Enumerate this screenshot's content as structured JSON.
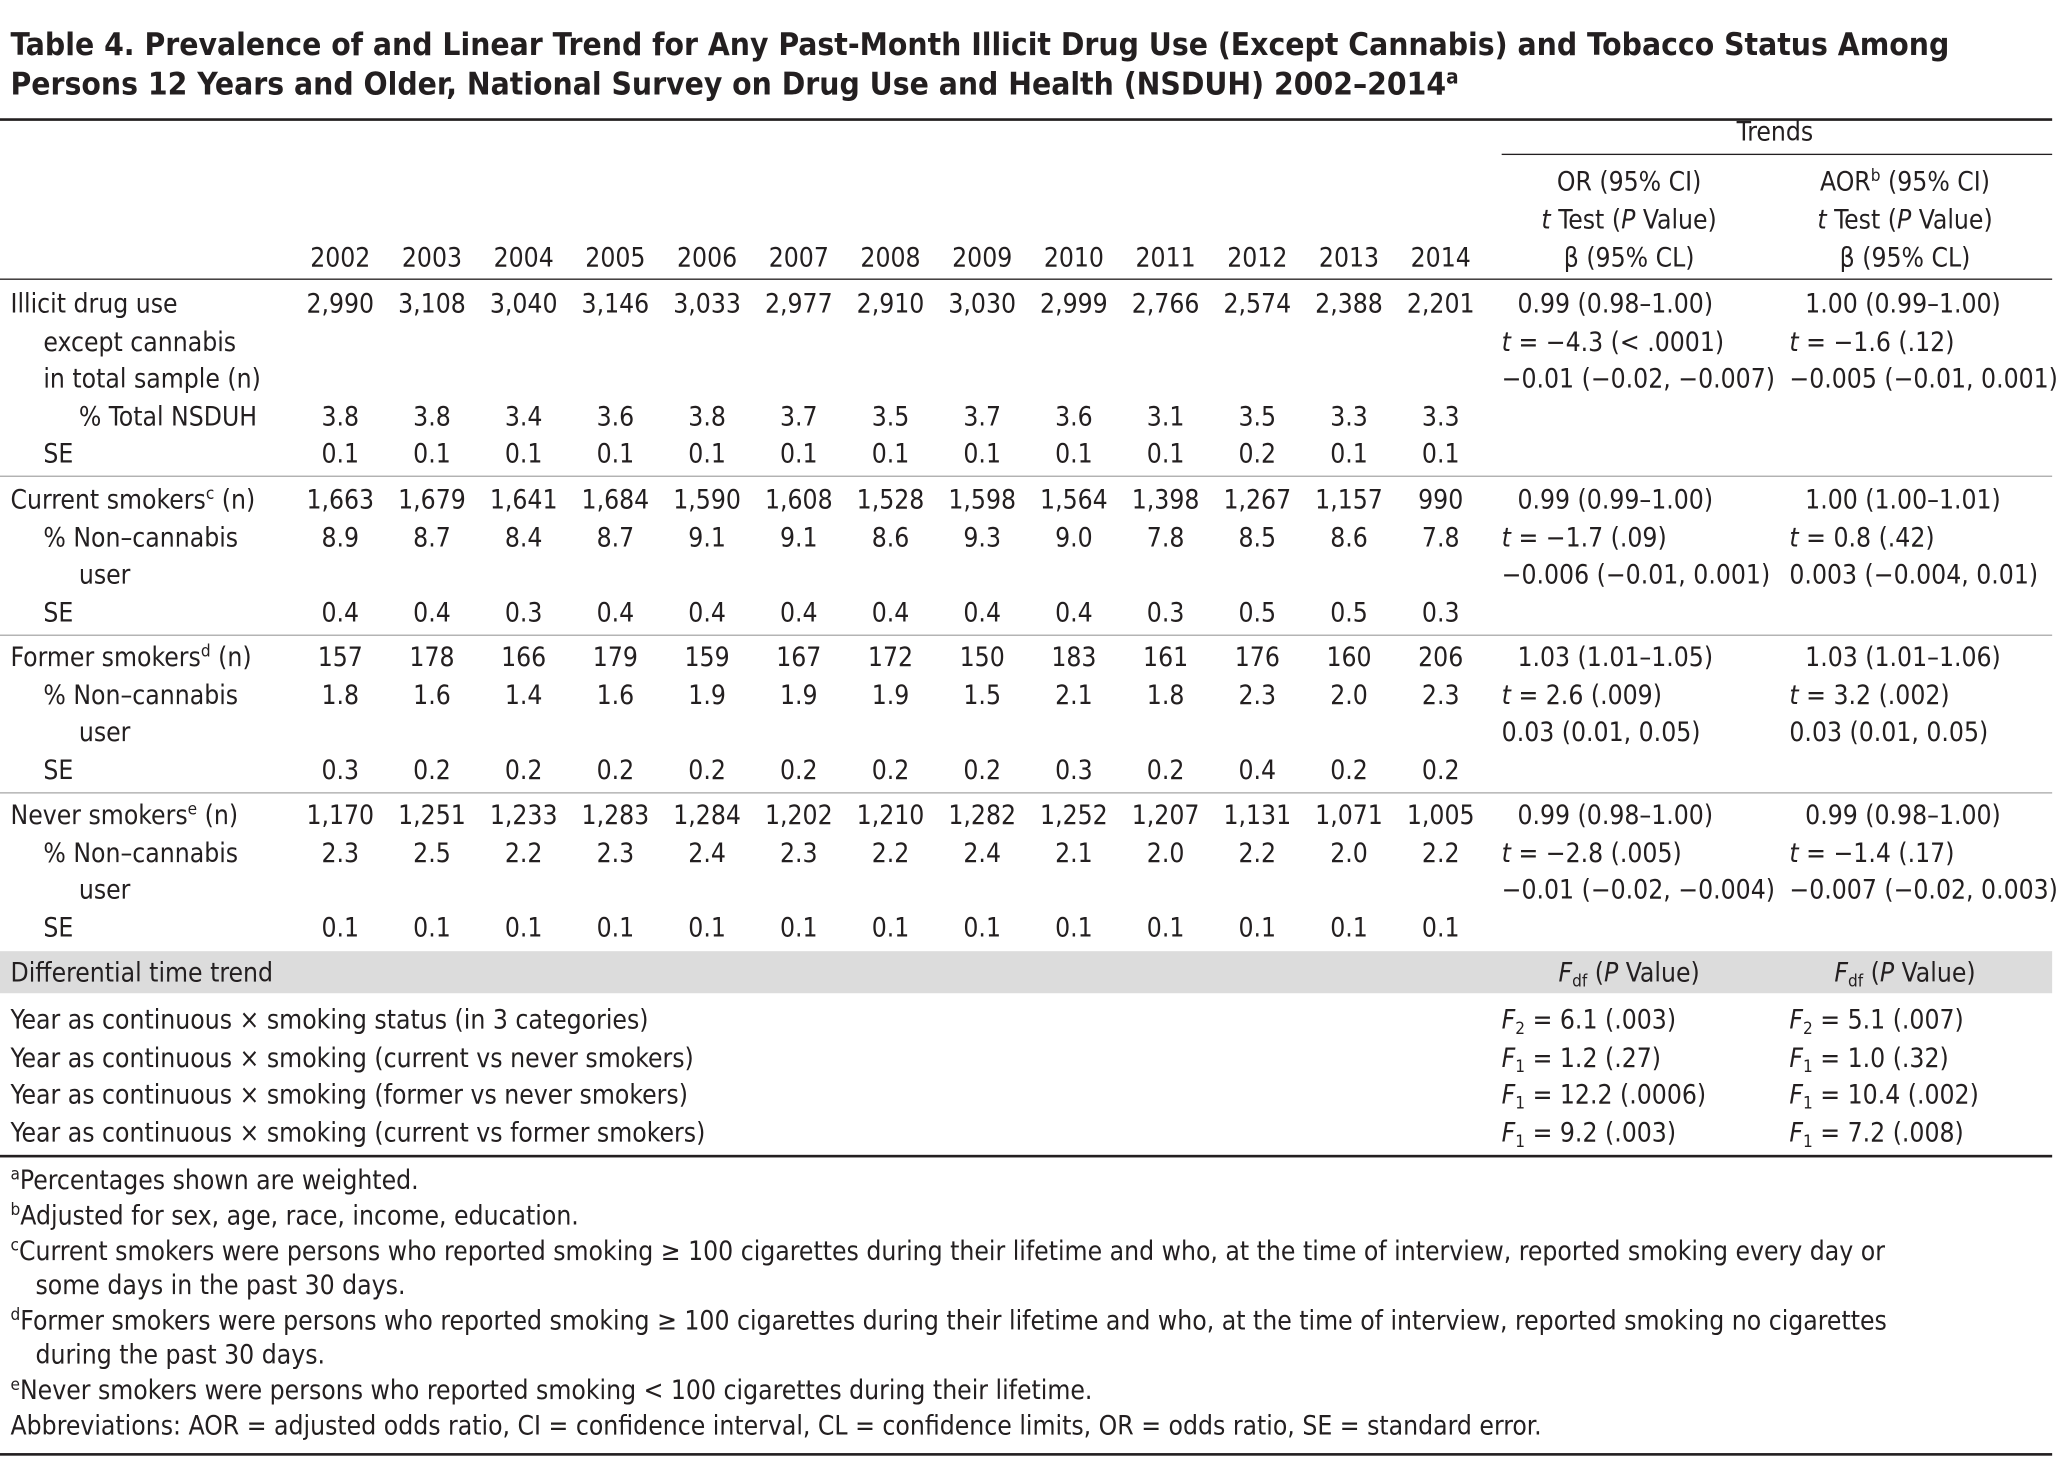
{
  "title": [
    {
      "t": "Table 4. Prevalence of and Linear Trend for Any Past-Month Illicit Drug Use (Except Cannabis) and Tobacco Status Among"
    }
  ],
  "title2": [
    {
      "t": "Persons 12 Years and Older,  National Survey on Drug Use and Health (NSDUH) 2002–2014"
    },
    {
      "t": "a",
      "f": "sup"
    }
  ],
  "header": {
    "years": [
      "2002",
      "2003",
      "2004",
      "2005",
      "2006",
      "2007",
      "2008",
      "2009",
      "2010",
      "2011",
      "2012",
      "2013",
      "2014"
    ],
    "trends": "Trends",
    "or": [
      [
        {
          "t": "OR (95% CI)"
        }
      ],
      [
        {
          "t": "t",
          "f": "i"
        },
        {
          "t": " Test ("
        },
        {
          "t": "P",
          "f": "i"
        },
        {
          "t": " Value)"
        }
      ],
      [
        {
          "t": "β (95% CL)"
        }
      ]
    ],
    "aor": [
      [
        {
          "t": "AOR"
        },
        {
          "t": "b",
          "f": "sup"
        },
        {
          "t": " (95% CI)"
        }
      ],
      [
        {
          "t": "t",
          "f": "i"
        },
        {
          "t": " Test ("
        },
        {
          "t": "P",
          "f": "i"
        },
        {
          "t": " Value)"
        }
      ],
      [
        {
          "t": "β (95% CL)"
        }
      ]
    ]
  },
  "groups": [
    {
      "rows": [
        {
          "label": [
            [
              {
                "t": "Illicit drug use"
              }
            ],
            [
              {
                "t": "except cannabis"
              }
            ],
            [
              {
                "t": "in total sample (n)"
              }
            ]
          ],
          "values": [
            "2,990",
            "3,108",
            "3,040",
            "3,146",
            "3,033",
            "2,977",
            "2,910",
            "3,030",
            "2,999",
            "2,766",
            "2,574",
            "2,388",
            "2,201"
          ]
        },
        {
          "label": [
            [
              {
                "t": "% Total NSDUH"
              }
            ]
          ],
          "values": [
            "3.8",
            "3.8",
            "3.4",
            "3.6",
            "3.8",
            "3.7",
            "3.5",
            "3.7",
            "3.6",
            "3.1",
            "3.5",
            "3.3",
            "3.3"
          ]
        },
        {
          "label": [
            [
              {
                "t": "SE"
              }
            ]
          ],
          "values": [
            "0.1",
            "0.1",
            "0.1",
            "0.1",
            "0.1",
            "0.1",
            "0.1",
            "0.1",
            "0.1",
            "0.1",
            "0.2",
            "0.1",
            "0.1"
          ]
        }
      ],
      "or": [
        [
          {
            "t": "0.99 (0.98–1.00)"
          }
        ],
        [
          {
            "t": "t",
            "f": "i"
          },
          {
            "t": " = −4.3 (< .0001)"
          }
        ],
        [
          {
            "t": "−0.01 (−0.02, −0.007)"
          }
        ]
      ],
      "aor": [
        [
          {
            "t": "1.00 (0.99–1.00)"
          }
        ],
        [
          {
            "t": "t",
            "f": "i"
          },
          {
            "t": " = −1.6 (.12)"
          }
        ],
        [
          {
            "t": "−0.005 (−0.01, 0.001)"
          }
        ]
      ]
    },
    {
      "rows": [
        {
          "label": [
            [
              {
                "t": "Current smokers"
              },
              {
                "t": "c",
                "f": "sup"
              },
              {
                "t": " (n)"
              }
            ]
          ],
          "values": [
            "1,663",
            "1,679",
            "1,641",
            "1,684",
            "1,590",
            "1,608",
            "1,528",
            "1,598",
            "1,564",
            "1,398",
            "1,267",
            "1,157",
            "990"
          ]
        },
        {
          "label": [
            [
              {
                "t": "% Non–cannabis"
              }
            ],
            [
              {
                "t": "user"
              }
            ]
          ],
          "values": [
            "8.9",
            "8.7",
            "8.4",
            "8.7",
            "9.1",
            "9.1",
            "8.6",
            "9.3",
            "9.0",
            "7.8",
            "8.5",
            "8.6",
            "7.8"
          ]
        },
        {
          "label": [
            [
              {
                "t": "SE"
              }
            ]
          ],
          "values": [
            "0.4",
            "0.4",
            "0.3",
            "0.4",
            "0.4",
            "0.4",
            "0.4",
            "0.4",
            "0.4",
            "0.3",
            "0.5",
            "0.5",
            "0.3"
          ]
        }
      ],
      "or": [
        [
          {
            "t": "0.99 (0.99–1.00)"
          }
        ],
        [
          {
            "t": "t",
            "f": "i"
          },
          {
            "t": " = −1.7 (.09)"
          }
        ],
        [
          {
            "t": "−0.006 (−0.01, 0.001)"
          }
        ]
      ],
      "aor": [
        [
          {
            "t": "1.00 (1.00–1.01)"
          }
        ],
        [
          {
            "t": "t",
            "f": "i"
          },
          {
            "t": " = 0.8 (.42)"
          }
        ],
        [
          {
            "t": "0.003 (−0.004, 0.01)"
          }
        ]
      ]
    },
    {
      "rows": [
        {
          "label": [
            [
              {
                "t": "Former smokers"
              },
              {
                "t": "d",
                "f": "sup"
              },
              {
                "t": " (n)"
              }
            ]
          ],
          "values": [
            "157",
            "178",
            "166",
            "179",
            "159",
            "167",
            "172",
            "150",
            "183",
            "161",
            "176",
            "160",
            "206"
          ]
        },
        {
          "label": [
            [
              {
                "t": "% Non–cannabis"
              }
            ],
            [
              {
                "t": "user"
              }
            ]
          ],
          "values": [
            "1.8",
            "1.6",
            "1.4",
            "1.6",
            "1.9",
            "1.9",
            "1.9",
            "1.5",
            "2.1",
            "1.8",
            "2.3",
            "2.0",
            "2.3"
          ]
        },
        {
          "label": [
            [
              {
                "t": "SE"
              }
            ]
          ],
          "values": [
            "0.3",
            "0.2",
            "0.2",
            "0.2",
            "0.2",
            "0.2",
            "0.2",
            "0.2",
            "0.3",
            "0.2",
            "0.4",
            "0.2",
            "0.2"
          ]
        }
      ],
      "or": [
        [
          {
            "t": "1.03 (1.01–1.05)"
          }
        ],
        [
          {
            "t": "t",
            "f": "i"
          },
          {
            "t": " = 2.6 (.009)"
          }
        ],
        [
          {
            "t": "0.03 (0.01, 0.05)"
          }
        ]
      ],
      "aor": [
        [
          {
            "t": "1.03 (1.01–1.06)"
          }
        ],
        [
          {
            "t": "t",
            "f": "i"
          },
          {
            "t": " = 3.2 (.002)"
          }
        ],
        [
          {
            "t": "0.03 (0.01, 0.05)"
          }
        ]
      ]
    },
    {
      "rows": [
        {
          "label": [
            [
              {
                "t": "Never smokers"
              },
              {
                "t": "e",
                "f": "sup"
              },
              {
                "t": " (n)"
              }
            ]
          ],
          "values": [
            "1,170",
            "1,251",
            "1,233",
            "1,283",
            "1,284",
            "1,202",
            "1,210",
            "1,282",
            "1,252",
            "1,207",
            "1,131",
            "1,071",
            "1,005"
          ]
        },
        {
          "label": [
            [
              {
                "t": "% Non–cannabis"
              }
            ],
            [
              {
                "t": "user"
              }
            ]
          ],
          "values": [
            "2.3",
            "2.5",
            "2.2",
            "2.3",
            "2.4",
            "2.3",
            "2.2",
            "2.4",
            "2.1",
            "2.0",
            "2.2",
            "2.0",
            "2.2"
          ]
        },
        {
          "label": [
            [
              {
                "t": "SE"
              }
            ]
          ],
          "values": [
            "0.1",
            "0.1",
            "0.1",
            "0.1",
            "0.1",
            "0.1",
            "0.1",
            "0.1",
            "0.1",
            "0.1",
            "0.1",
            "0.1",
            "0.1"
          ]
        }
      ],
      "or": [
        [
          {
            "t": "0.99 (0.98–1.00)"
          }
        ],
        [
          {
            "t": "t",
            "f": "i"
          },
          {
            "t": " = −2.8 (.005)"
          }
        ],
        [
          {
            "t": "−0.01 (−0.02, −0.004)"
          }
        ]
      ],
      "aor": [
        [
          {
            "t": "0.99 (0.98–1.00)"
          }
        ],
        [
          {
            "t": "t",
            "f": "i"
          },
          {
            "t": " = −1.4 (.17)"
          }
        ],
        [
          {
            "t": "−0.007 (−0.02, 0.003)"
          }
        ]
      ]
    }
  ],
  "differential": {
    "label": "Differential time trend",
    "or_head": [
      {
        "t": "F",
        "f": "i"
      },
      {
        "t": "df",
        "f": "sub"
      },
      {
        "t": " ("
      },
      {
        "t": "P",
        "f": "i"
      },
      {
        "t": " Value)"
      }
    ],
    "aor_head": [
      {
        "t": "F",
        "f": "i"
      },
      {
        "t": "df",
        "f": "sub"
      },
      {
        "t": " ("
      },
      {
        "t": "P",
        "f": "i"
      },
      {
        "t": " Value)"
      }
    ],
    "rows": [
      {
        "label": "Year as continuous × smoking status (in 3 categories)",
        "or": [
          {
            "t": "F",
            "f": "i"
          },
          {
            "t": "2",
            "f": "sub"
          },
          {
            "t": " = 6.1 (.003)"
          }
        ],
        "aor": [
          {
            "t": "F",
            "f": "i"
          },
          {
            "t": "2",
            "f": "sub"
          },
          {
            "t": " = 5.1 (.007)"
          }
        ]
      },
      {
        "label": "Year as continuous × smoking (current vs never smokers)",
        "or": [
          {
            "t": "F",
            "f": "i"
          },
          {
            "t": "1",
            "f": "sub"
          },
          {
            "t": " = 1.2 (.27)"
          }
        ],
        "aor": [
          {
            "t": "F",
            "f": "i"
          },
          {
            "t": "1",
            "f": "sub"
          },
          {
            "t": " = 1.0 (.32)"
          }
        ]
      },
      {
        "label": "Year as continuous × smoking (former vs never smokers)",
        "or": [
          {
            "t": "F",
            "f": "i"
          },
          {
            "t": "1",
            "f": "sub"
          },
          {
            "t": " = 12.2 (.0006)"
          }
        ],
        "aor": [
          {
            "t": "F",
            "f": "i"
          },
          {
            "t": "1",
            "f": "sub"
          },
          {
            "t": " = 10.4 (.002)"
          }
        ]
      },
      {
        "label": "Year as continuous × smoking (current vs former smokers)",
        "or": [
          {
            "t": "F",
            "f": "i"
          },
          {
            "t": "1",
            "f": "sub"
          },
          {
            "t": " = 9.2 (.003)"
          }
        ],
        "aor": [
          {
            "t": "F",
            "f": "i"
          },
          {
            "t": "1",
            "f": "sub"
          },
          {
            "t": " = 7.2 (.008)"
          }
        ]
      }
    ]
  },
  "footnotes": [
    {
      "note": [
        {
          "t": "a",
          "f": "sup"
        },
        {
          "t": "Percentages shown are weighted."
        }
      ]
    },
    {
      "note": [
        {
          "t": "b",
          "f": "sup"
        },
        {
          "t": "Adjusted for sex, age, race, income, education."
        }
      ]
    },
    {
      "note": [
        {
          "t": "c",
          "f": "sup"
        },
        {
          "t": "Current smokers were persons who reported smoking ≥ 100 cigarettes during their lifetime and who, at the time of interview, reported smoking every day or"
        }
      ],
      "cont": "some days in the past 30 days."
    },
    {
      "note": [
        {
          "t": "d",
          "f": "sup"
        },
        {
          "t": "Former smokers were persons who reported smoking ≥ 100 cigarettes during their lifetime and who, at the time of interview, reported smoking no cigarettes"
        }
      ],
      "cont": "during the past 30 days."
    },
    {
      "note": [
        {
          "t": "e",
          "f": "sup"
        },
        {
          "t": "Never smokers were persons who reported smoking < 100 cigarettes during their lifetime."
        }
      ]
    },
    {
      "note": [
        {
          "t": "Abbreviations: AOR = adjusted odds ratio, CI = confidence interval, CL = confidence limits, OR = odds ratio, SE = standard error."
        }
      ]
    }
  ]
}
